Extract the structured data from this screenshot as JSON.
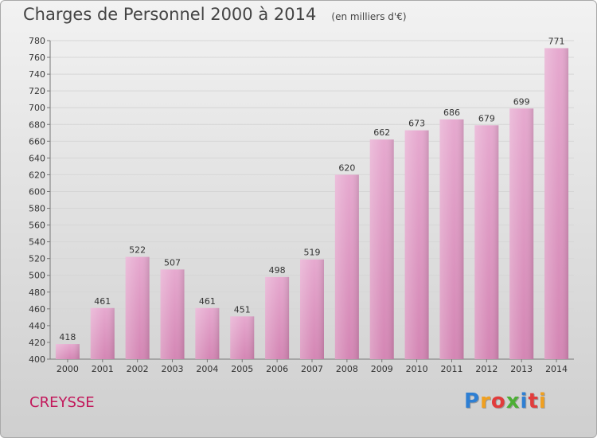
{
  "chart_data": {
    "type": "bar",
    "title": "Charges de Personnel 2000 à 2014",
    "subtitle": "(en milliers d'€)",
    "categories": [
      "2000",
      "2001",
      "2002",
      "2003",
      "2004",
      "2005",
      "2006",
      "2007",
      "2008",
      "2009",
      "2010",
      "2011",
      "2012",
      "2013",
      "2014"
    ],
    "values": [
      418,
      461,
      522,
      507,
      461,
      451,
      498,
      519,
      620,
      662,
      673,
      686,
      679,
      699,
      771
    ],
    "ylim": [
      400,
      780
    ],
    "ytick_step": 20,
    "grid": true,
    "bar_color": "#d486b4",
    "xlabel": "",
    "ylabel": ""
  },
  "footer": {
    "commune": "CREYSSE",
    "logo_letters": [
      "P",
      "r",
      "o",
      "x",
      "i",
      "t",
      "i"
    ],
    "logo_colors": [
      "#2e7fd3",
      "#f0a020",
      "#e13c3c",
      "#4cae35",
      "#2e7fd3",
      "#e13c3c",
      "#f0a020"
    ]
  }
}
